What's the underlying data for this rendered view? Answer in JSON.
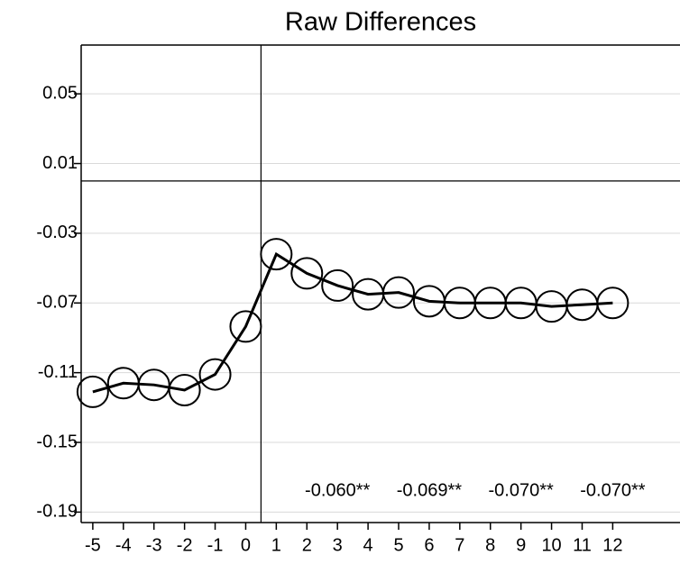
{
  "chart_data": {
    "type": "line",
    "title": "Raw Differences",
    "x": [
      -5,
      -4,
      -3,
      -2,
      -1,
      0,
      1,
      2,
      3,
      4,
      5,
      6,
      7,
      8,
      9,
      10,
      11,
      12
    ],
    "series": [
      {
        "color": "#000000",
        "marker": "hollow-circle",
        "values": [
          -0.121,
          -0.116,
          -0.117,
          -0.12,
          -0.111,
          -0.0835,
          -0.042,
          -0.053,
          -0.06,
          -0.065,
          -0.064,
          -0.069,
          -0.07,
          -0.07,
          -0.07,
          -0.072,
          -0.071,
          -0.07
        ]
      }
    ],
    "xlim": [
      -5.38,
      14.2
    ],
    "xticks": [
      -5,
      -4,
      -3,
      -2,
      -1,
      0,
      1,
      2,
      3,
      4,
      5,
      6,
      7,
      8,
      9,
      10,
      11,
      12
    ],
    "ylim": [
      -0.196,
      0.078
    ],
    "yticks": [
      0.05,
      0.01,
      -0.03,
      -0.07,
      -0.11,
      -0.15,
      -0.19
    ],
    "grid": true,
    "reference_lines": {
      "y": 0,
      "x": 0.5
    },
    "annotations": [
      {
        "x": 3,
        "text": "-0.060**"
      },
      {
        "x": 6,
        "text": "-0.069**"
      },
      {
        "x": 9,
        "text": "-0.070**"
      },
      {
        "x": 12,
        "text": "-0.070**"
      }
    ]
  }
}
